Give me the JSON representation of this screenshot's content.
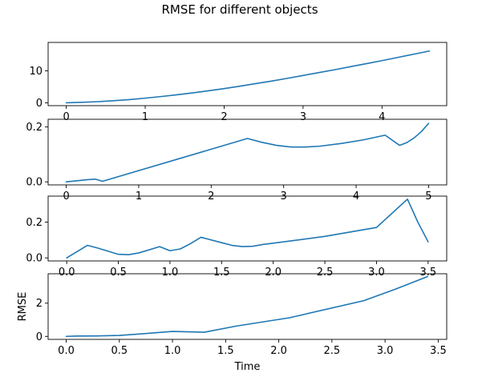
{
  "figure": {
    "title": "RMSE for different objects",
    "line_color": "#1f77b4"
  },
  "chart_data": [
    {
      "type": "line",
      "title": "",
      "xlabel": "",
      "ylabel": "",
      "xlim": [
        -0.23,
        4.82
      ],
      "ylim": [
        -0.9,
        18.9
      ],
      "xticks": [
        0,
        1,
        2,
        3,
        4
      ],
      "yticks": [
        0,
        10
      ],
      "grid": false,
      "series": [
        {
          "x": [
            0.0,
            0.2,
            0.4,
            0.6,
            0.8,
            1.0,
            1.2,
            1.4,
            1.6,
            1.8,
            2.0,
            2.2,
            2.4,
            2.6,
            2.8,
            3.0,
            3.2,
            3.4,
            3.6,
            3.8,
            4.0,
            4.2,
            4.4,
            4.6
          ],
          "y": [
            0.0,
            0.15,
            0.35,
            0.65,
            1.0,
            1.45,
            1.95,
            2.5,
            3.1,
            3.75,
            4.45,
            5.2,
            6.0,
            6.8,
            7.65,
            8.55,
            9.45,
            10.35,
            11.3,
            12.25,
            13.2,
            14.2,
            15.2,
            16.2
          ]
        }
      ]
    },
    {
      "type": "line",
      "title": "",
      "xlabel": "",
      "ylabel": "",
      "xlim": [
        -0.25,
        5.25
      ],
      "ylim": [
        -0.011,
        0.228
      ],
      "xticks": [
        0,
        1,
        2,
        3,
        4,
        5
      ],
      "yticks": [
        0.0,
        0.2
      ],
      "grid": false,
      "series": [
        {
          "x": [
            0.0,
            0.15,
            0.3,
            0.4,
            0.5,
            2.5,
            2.7,
            2.9,
            3.1,
            3.3,
            3.5,
            3.8,
            4.1,
            4.4,
            4.6,
            4.7,
            4.8,
            4.9,
            5.0
          ],
          "y": [
            0.0,
            0.004,
            0.008,
            0.01,
            0.002,
            0.158,
            0.144,
            0.133,
            0.127,
            0.127,
            0.13,
            0.14,
            0.153,
            0.17,
            0.133,
            0.143,
            0.16,
            0.183,
            0.213
          ]
        }
      ]
    },
    {
      "type": "line",
      "title": "",
      "xlabel": "",
      "ylabel": "",
      "xlim": [
        -0.18,
        3.68
      ],
      "ylim": [
        -0.017,
        0.345
      ],
      "xticks": [
        0.0,
        0.5,
        1.0,
        1.5,
        2.0,
        2.5,
        3.0,
        3.5
      ],
      "yticks": [
        0.0,
        0.2
      ],
      "grid": false,
      "series": [
        {
          "x": [
            0.0,
            0.2,
            0.3,
            0.5,
            0.6,
            0.7,
            0.9,
            1.0,
            1.1,
            1.2,
            1.3,
            1.5,
            1.6,
            1.7,
            1.8,
            1.9,
            2.0,
            2.5,
            3.0,
            3.3,
            3.4,
            3.5
          ],
          "y": [
            0.0,
            0.07,
            0.055,
            0.02,
            0.018,
            0.028,
            0.063,
            0.04,
            0.05,
            0.08,
            0.115,
            0.085,
            0.07,
            0.063,
            0.065,
            0.075,
            0.082,
            0.12,
            0.17,
            0.328,
            0.2,
            0.09
          ]
        }
      ]
    },
    {
      "type": "line",
      "title": "",
      "xlabel": "Time",
      "ylabel": "RMSE",
      "xlim": [
        -0.17,
        3.58
      ],
      "ylim": [
        -0.18,
        3.77
      ],
      "xticks": [
        0.0,
        0.5,
        1.0,
        1.5,
        2.0,
        2.5,
        3.0,
        3.5
      ],
      "yticks": [
        0,
        2
      ],
      "grid": false,
      "series": [
        {
          "x": [
            0.0,
            0.1,
            0.3,
            0.5,
            0.7,
            1.0,
            1.3,
            1.6,
            2.1,
            2.8,
            3.1,
            3.4
          ],
          "y": [
            0.0,
            0.02,
            0.03,
            0.06,
            0.15,
            0.3,
            0.25,
            0.62,
            1.12,
            2.15,
            2.85,
            3.6
          ]
        }
      ]
    }
  ]
}
